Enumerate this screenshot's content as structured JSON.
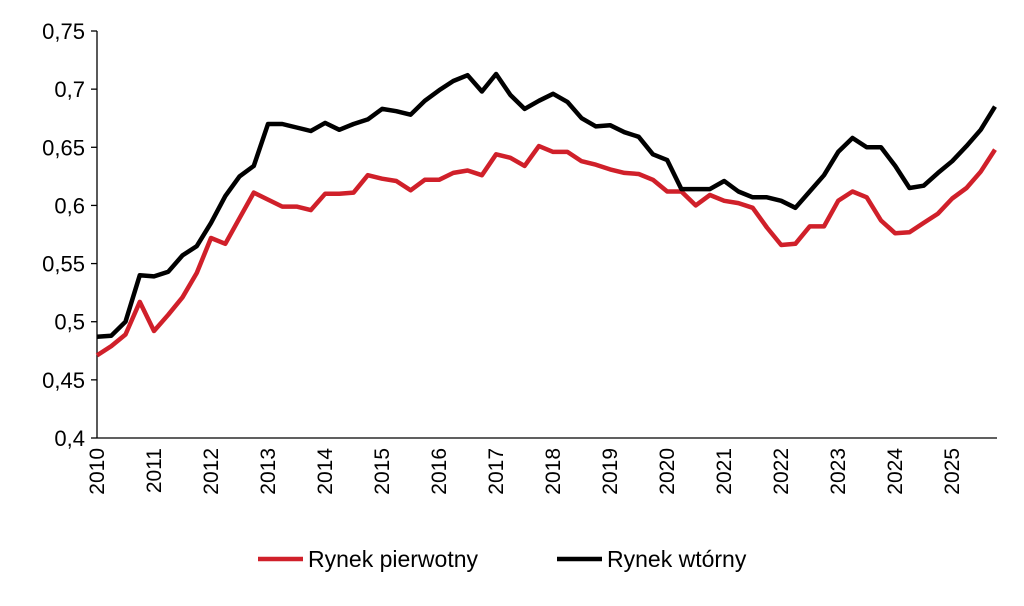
{
  "chart_data": {
    "type": "line",
    "title": "",
    "xlabel": "",
    "ylabel": "",
    "ylim": [
      0.4,
      0.75
    ],
    "yticks": [
      "0,4",
      "0,45",
      "0,5",
      "0,55",
      "0,6",
      "0,65",
      "0,7",
      "0,75"
    ],
    "ytick_values": [
      0.4,
      0.45,
      0.5,
      0.55,
      0.6,
      0.65,
      0.7,
      0.75
    ],
    "xticks": [
      "2010",
      "2011",
      "2012",
      "2013",
      "2014",
      "2015",
      "2016",
      "2017",
      "2018",
      "2019",
      "2020",
      "2021",
      "2022",
      "2023",
      "2024",
      "2025"
    ],
    "x_frequency": "quarterly",
    "legend_position": "bottom",
    "grid": false,
    "series": [
      {
        "name": "Rynek pierwotny",
        "color": "#d0202a",
        "values": [
          0.471,
          0.479,
          0.489,
          0.517,
          0.492,
          0.506,
          0.521,
          0.542,
          0.572,
          0.567,
          0.589,
          0.611,
          0.605,
          0.599,
          0.599,
          0.596,
          0.61,
          0.61,
          0.611,
          0.626,
          0.623,
          0.621,
          0.613,
          0.622,
          0.622,
          0.628,
          0.63,
          0.626,
          0.644,
          0.641,
          0.634,
          0.651,
          0.646,
          0.646,
          0.638,
          0.635,
          0.631,
          0.628,
          0.627,
          0.622,
          0.612,
          0.612,
          0.6,
          0.609,
          0.604,
          0.602,
          0.598,
          0.581,
          0.566,
          0.567,
          0.582,
          0.582,
          0.604,
          0.612,
          0.607,
          0.587,
          0.576,
          0.577,
          0.585,
          0.593,
          0.606,
          0.615,
          0.629,
          0.648
        ]
      },
      {
        "name": "Rynek wtórny",
        "color": "#000000",
        "values": [
          0.487,
          0.488,
          0.5,
          0.54,
          0.539,
          0.543,
          0.557,
          0.565,
          0.585,
          0.608,
          0.625,
          0.634,
          0.67,
          0.67,
          0.667,
          0.664,
          0.671,
          0.665,
          0.67,
          0.674,
          0.683,
          0.681,
          0.678,
          0.69,
          0.699,
          0.707,
          0.712,
          0.698,
          0.713,
          0.695,
          0.683,
          0.69,
          0.696,
          0.689,
          0.675,
          0.668,
          0.669,
          0.663,
          0.659,
          0.644,
          0.639,
          0.614,
          0.614,
          0.614,
          0.621,
          0.612,
          0.607,
          0.607,
          0.604,
          0.598,
          0.612,
          0.626,
          0.646,
          0.658,
          0.65,
          0.65,
          0.634,
          0.615,
          0.617,
          0.628,
          0.638,
          0.651,
          0.665,
          0.685
        ]
      }
    ]
  }
}
